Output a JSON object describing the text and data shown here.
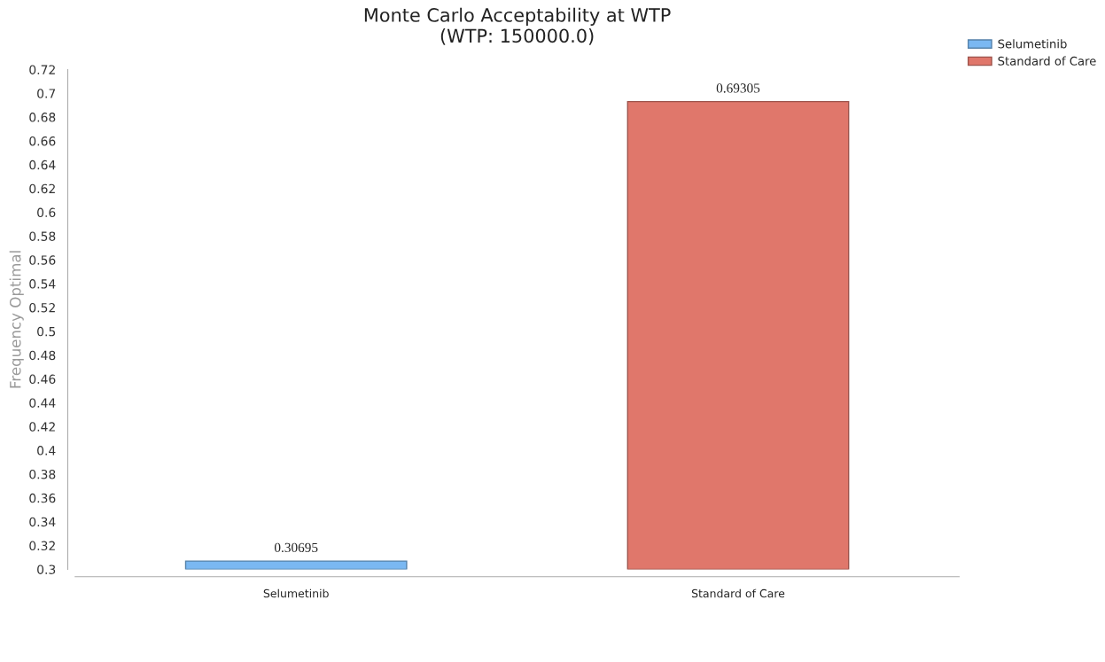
{
  "chart_data": {
    "type": "bar",
    "title": "Monte Carlo Acceptability at WTP\n(WTP: 150000.0)",
    "ylabel": "Frequency Optimal",
    "categories": [
      "Selumetinib",
      "Standard of Care"
    ],
    "series": [
      {
        "name": "Selumetinib",
        "color": "#7ab8f2",
        "values": [
          0.30695,
          null
        ]
      },
      {
        "name": "Standard of Care",
        "color": "#e0776b",
        "values": [
          null,
          0.69305
        ]
      }
    ],
    "ylim": [
      0.3,
      0.72
    ],
    "yticks": [
      0.3,
      0.32,
      0.34,
      0.36,
      0.38,
      0.4,
      0.42,
      0.44,
      0.46,
      0.48,
      0.5,
      0.52,
      0.54,
      0.56,
      0.58,
      0.6,
      0.62,
      0.64,
      0.66,
      0.68,
      0.7,
      0.72
    ],
    "data_labels": true,
    "grid": false,
    "legend": "top right"
  }
}
